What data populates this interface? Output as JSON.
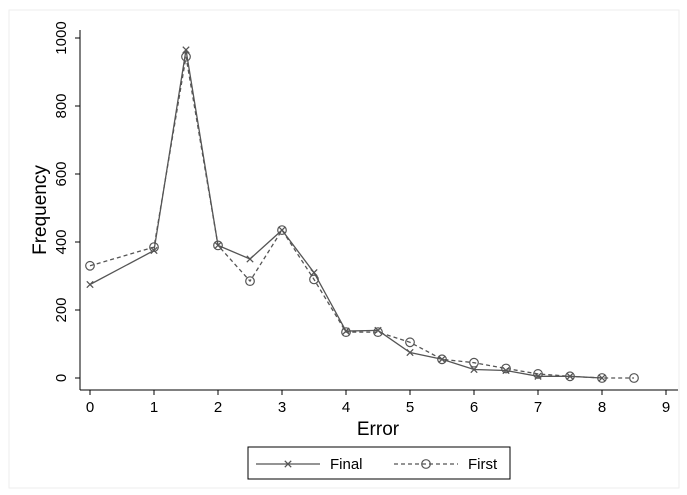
{
  "chart_data": {
    "type": "line",
    "xlabel": "Error",
    "ylabel": "Frequency",
    "xlim": [
      0,
      9
    ],
    "ylim": [
      0,
      1000
    ],
    "xticks": [
      0,
      1,
      2,
      3,
      4,
      5,
      6,
      7,
      8,
      9
    ],
    "yticks": [
      0,
      200,
      400,
      600,
      800,
      1000
    ],
    "grid": false,
    "legend_position": "bottom",
    "series": [
      {
        "name": "Final",
        "style": "solid",
        "marker": "x",
        "color": "#555555",
        "x": [
          0,
          1,
          1.5,
          2,
          2.5,
          3,
          3.5,
          4,
          4.5,
          5,
          5.5,
          6,
          6.5,
          7,
          7.5,
          8
        ],
        "y": [
          275,
          375,
          965,
          390,
          350,
          435,
          310,
          138,
          140,
          75,
          55,
          25,
          22,
          5,
          5,
          0
        ]
      },
      {
        "name": "First",
        "style": "dashed",
        "marker": "circle",
        "color": "#555555",
        "x": [
          0,
          1,
          1.5,
          2,
          2.5,
          3,
          3.5,
          4,
          4.5,
          5,
          5.5,
          6,
          6.5,
          7,
          7.5,
          8,
          8.5
        ],
        "y": [
          330,
          385,
          945,
          390,
          285,
          435,
          290,
          135,
          135,
          105,
          55,
          45,
          28,
          12,
          5,
          0,
          0
        ]
      }
    ]
  }
}
